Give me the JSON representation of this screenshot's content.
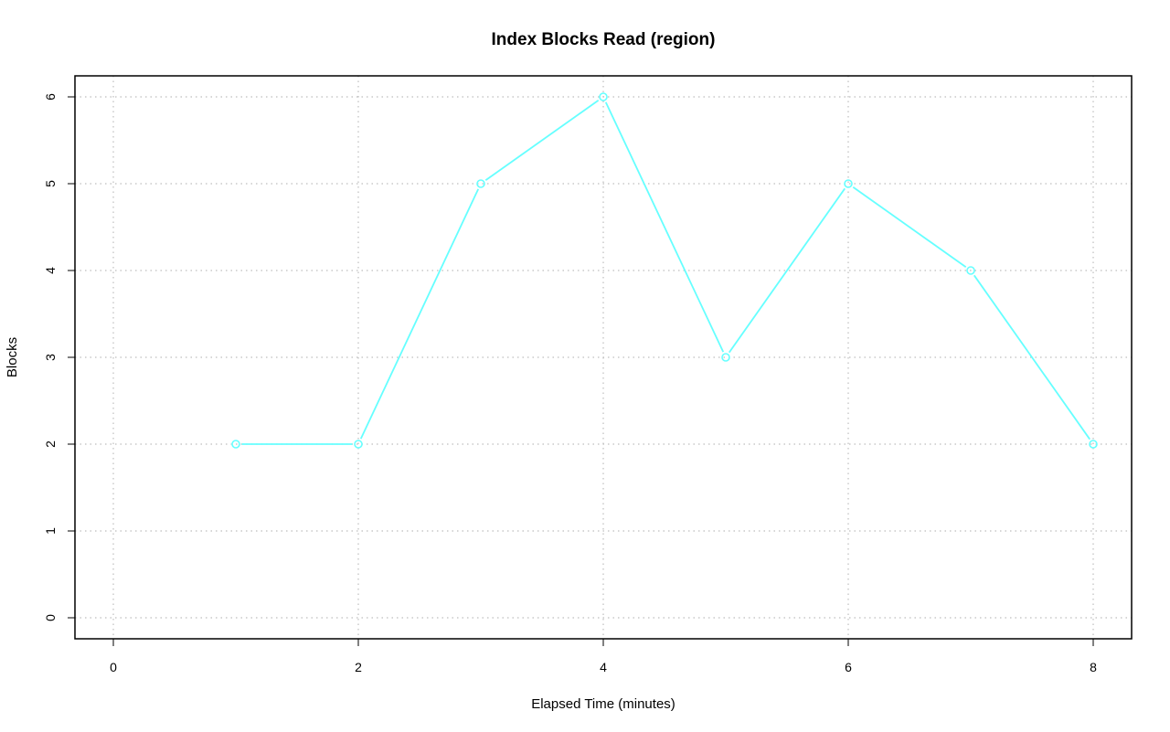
{
  "chart_data": {
    "type": "line",
    "title": "Index Blocks Read (region)",
    "xlabel": "Elapsed Time (minutes)",
    "ylabel": "Blocks",
    "x": [
      1,
      2,
      3,
      4,
      5,
      6,
      7,
      8
    ],
    "series": [
      {
        "values": [
          2,
          2,
          5,
          6,
          3,
          5,
          4,
          2
        ],
        "color": "#66ffff",
        "marker": "open-circle"
      }
    ],
    "xlim": [
      0,
      8
    ],
    "ylim": [
      0,
      6
    ],
    "xticks": [
      "0",
      "2",
      "4",
      "6",
      "8"
    ],
    "yticks": [
      "0",
      "1",
      "2",
      "3",
      "4",
      "5",
      "6"
    ],
    "grid": true
  }
}
